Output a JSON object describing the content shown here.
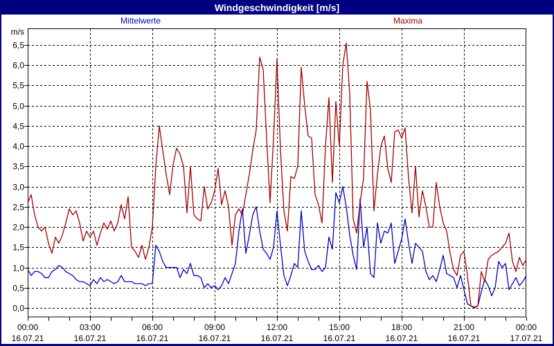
{
  "window": {
    "title": "Windgeschwindigkeit [m/s]"
  },
  "legend": {
    "mean": "Mittelwerte",
    "maxima": "Maxima"
  },
  "colors": {
    "titlebar_bg": "#000080",
    "title_text": "#FFFFFF",
    "mean_line": "#0000BB",
    "max_line": "#A00000",
    "axis": "#000000",
    "plot_bg": "#FFFFFF"
  },
  "chart_data": {
    "type": "line",
    "title": "Windgeschwindigkeit [m/s]",
    "ylabel": "m/s",
    "xlabel": "",
    "ylim": [
      0,
      6.9
    ],
    "grid": "dashed",
    "legend_position": "top",
    "ytick_values": [
      0,
      0.5,
      1,
      1.5,
      2,
      2.5,
      3,
      3.5,
      4,
      4.5,
      5,
      5.5,
      6,
      6.5
    ],
    "ytick_labels": [
      "0,0",
      "0,5",
      "1,0",
      "1,5",
      "2,0",
      "2,5",
      "3,0",
      "3,5",
      "4,0",
      "4,5",
      "5,0",
      "5,5",
      "6,0",
      "6,5"
    ],
    "x_range_hours": [
      0,
      24
    ],
    "minor_tick_minutes": 60,
    "major_tick_minutes": 180,
    "x_major_ticks": [
      {
        "time": "00:00",
        "date": "16.07.21"
      },
      {
        "time": "03:00",
        "date": "16.07.21"
      },
      {
        "time": "06:00",
        "date": "16.07.21"
      },
      {
        "time": "09:00",
        "date": "16.07.21"
      },
      {
        "time": "12:00",
        "date": "16.07.21"
      },
      {
        "time": "15:00",
        "date": "16.07.21"
      },
      {
        "time": "18:00",
        "date": "16.07.21"
      },
      {
        "time": "21:00",
        "date": "16.07.21"
      },
      {
        "time": "00:00",
        "date": "17.07.21"
      }
    ],
    "sample_interval_minutes": 10,
    "series": [
      {
        "name": "Mittelwerte",
        "color": "#0000BB",
        "values": [
          0.95,
          0.8,
          0.9,
          0.9,
          0.85,
          0.75,
          0.75,
          0.9,
          0.95,
          1.05,
          1.0,
          0.9,
          0.85,
          0.8,
          0.7,
          0.65,
          0.65,
          0.6,
          0.55,
          0.7,
          0.6,
          0.75,
          0.65,
          0.7,
          0.65,
          0.6,
          0.65,
          0.8,
          0.65,
          0.65,
          0.65,
          0.6,
          0.6,
          0.6,
          0.55,
          0.6,
          0.6,
          1.55,
          1.4,
          1.15,
          1.0,
          1.0,
          1.0,
          1.0,
          0.75,
          0.95,
          0.85,
          1.1,
          0.8,
          0.8,
          0.75,
          0.5,
          0.6,
          0.5,
          0.55,
          0.45,
          0.55,
          0.75,
          0.6,
          0.85,
          1.1,
          1.9,
          2.45,
          1.35,
          1.8,
          2.3,
          2.5,
          1.9,
          1.45,
          1.35,
          1.2,
          1.5,
          2.4,
          1.55,
          0.8,
          0.55,
          0.8,
          1.1,
          1.0,
          2.4,
          1.4,
          1.15,
          0.95,
          0.95,
          1.05,
          0.9,
          1.0,
          1.75,
          1.45,
          2.85,
          2.6,
          3.0,
          2.5,
          1.8,
          1.3,
          0.95,
          2.7,
          1.5,
          2.0,
          0.85,
          0.75,
          2.1,
          1.6,
          1.9,
          1.85,
          2.1,
          1.1,
          1.4,
          1.7,
          2.2,
          1.6,
          1.1,
          1.6,
          1.5,
          1.4,
          0.9,
          0.7,
          0.8,
          0.65,
          0.95,
          1.3,
          0.85,
          0.8,
          0.75,
          0.5,
          0.8,
          0.45,
          0.1,
          0.05,
          0.0,
          0.05,
          0.4,
          0.7,
          0.55,
          0.3,
          0.5,
          1.15,
          1.0,
          1.1,
          0.45,
          0.6,
          0.75,
          0.55,
          0.65,
          0.8
        ]
      },
      {
        "name": "Maxima",
        "color": "#A00000",
        "values": [
          2.6,
          2.8,
          2.3,
          2.0,
          1.9,
          2.0,
          1.6,
          1.35,
          1.75,
          1.6,
          1.8,
          2.1,
          2.45,
          2.3,
          2.4,
          2.1,
          1.65,
          1.9,
          1.75,
          1.9,
          1.55,
          1.85,
          2.1,
          1.95,
          2.15,
          1.9,
          2.1,
          2.55,
          2.2,
          2.75,
          1.5,
          1.4,
          1.25,
          1.55,
          1.2,
          1.5,
          2.0,
          3.5,
          4.5,
          3.9,
          3.3,
          2.8,
          3.55,
          3.95,
          3.8,
          3.5,
          2.35,
          3.5,
          2.3,
          2.2,
          2.15,
          3.0,
          2.45,
          2.6,
          2.9,
          3.45,
          2.55,
          2.9,
          2.5,
          1.55,
          2.3,
          2.45,
          2.3,
          2.8,
          3.3,
          3.9,
          4.4,
          6.2,
          5.9,
          4.2,
          2.6,
          4.2,
          6.15,
          3.9,
          2.4,
          1.9,
          3.25,
          3.2,
          3.5,
          5.95,
          5.0,
          4.25,
          4.2,
          2.8,
          2.55,
          2.1,
          4.0,
          5.2,
          3.1,
          5.1,
          4.0,
          6.0,
          6.55,
          5.3,
          2.2,
          1.85,
          2.6,
          3.2,
          5.6,
          4.9,
          2.4,
          3.3,
          4.0,
          4.25,
          3.45,
          3.1,
          4.35,
          4.4,
          4.2,
          4.45,
          3.2,
          2.35,
          3.5,
          2.25,
          2.9,
          2.5,
          2.0,
          2.0,
          3.1,
          2.5,
          2.1,
          1.9,
          1.35,
          0.95,
          0.8,
          1.3,
          1.4,
          0.8,
          0.05,
          0.02,
          0.05,
          0.9,
          0.65,
          1.2,
          1.3,
          1.35,
          1.4,
          1.5,
          1.6,
          1.85,
          1.15,
          0.9,
          1.25,
          1.05,
          1.2
        ]
      }
    ]
  }
}
